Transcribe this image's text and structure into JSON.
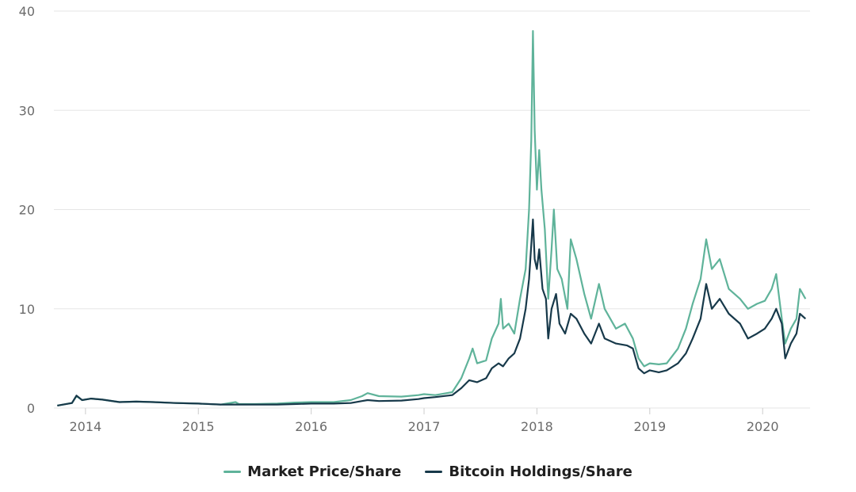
{
  "colors": {
    "market": "#5fb39a",
    "holdings": "#17394a",
    "grid": "#e6e6e6",
    "axis_text": "#6b6b6b"
  },
  "chart_data": {
    "type": "line",
    "title": "",
    "xlabel": "",
    "ylabel": "",
    "ylim": [
      0,
      40
    ],
    "yticks": [
      0,
      10,
      20,
      30,
      40
    ],
    "xlim": [
      2013.72,
      2020.42
    ],
    "xticks": [
      2014,
      2015,
      2016,
      2017,
      2018,
      2019,
      2020
    ],
    "grid": true,
    "legend_position": "bottom-center",
    "series": [
      {
        "name": "Market Price/Share",
        "color": "#5fb39a",
        "points": [
          [
            2013.75,
            0.25
          ],
          [
            2013.88,
            0.5
          ],
          [
            2013.92,
            1.2
          ],
          [
            2013.97,
            0.8
          ],
          [
            2014.05,
            0.95
          ],
          [
            2014.15,
            0.85
          ],
          [
            2014.3,
            0.6
          ],
          [
            2014.45,
            0.65
          ],
          [
            2014.6,
            0.6
          ],
          [
            2014.8,
            0.5
          ],
          [
            2015.0,
            0.45
          ],
          [
            2015.2,
            0.35
          ],
          [
            2015.33,
            0.6
          ],
          [
            2015.36,
            0.4
          ],
          [
            2015.5,
            0.4
          ],
          [
            2015.7,
            0.45
          ],
          [
            2015.85,
            0.55
          ],
          [
            2016.0,
            0.6
          ],
          [
            2016.2,
            0.6
          ],
          [
            2016.35,
            0.8
          ],
          [
            2016.45,
            1.2
          ],
          [
            2016.5,
            1.5
          ],
          [
            2016.6,
            1.2
          ],
          [
            2016.8,
            1.15
          ],
          [
            2016.95,
            1.3
          ],
          [
            2017.0,
            1.4
          ],
          [
            2017.1,
            1.3
          ],
          [
            2017.25,
            1.6
          ],
          [
            2017.33,
            3.0
          ],
          [
            2017.4,
            5.0
          ],
          [
            2017.43,
            6.0
          ],
          [
            2017.47,
            4.5
          ],
          [
            2017.55,
            4.8
          ],
          [
            2017.6,
            7.0
          ],
          [
            2017.66,
            8.5
          ],
          [
            2017.68,
            11.0
          ],
          [
            2017.7,
            8.0
          ],
          [
            2017.75,
            8.5
          ],
          [
            2017.8,
            7.5
          ],
          [
            2017.85,
            11.0
          ],
          [
            2017.9,
            14.0
          ],
          [
            2017.93,
            20.0
          ],
          [
            2017.95,
            27.0
          ],
          [
            2017.965,
            38.0
          ],
          [
            2017.98,
            28.0
          ],
          [
            2018.0,
            22.0
          ],
          [
            2018.02,
            26.0
          ],
          [
            2018.04,
            22.0
          ],
          [
            2018.07,
            18.0
          ],
          [
            2018.1,
            11.0
          ],
          [
            2018.13,
            16.0
          ],
          [
            2018.15,
            20.0
          ],
          [
            2018.18,
            14.0
          ],
          [
            2018.22,
            13.0
          ],
          [
            2018.27,
            10.0
          ],
          [
            2018.3,
            17.0
          ],
          [
            2018.35,
            15.0
          ],
          [
            2018.42,
            11.5
          ],
          [
            2018.48,
            9.0
          ],
          [
            2018.55,
            12.5
          ],
          [
            2018.6,
            10.0
          ],
          [
            2018.7,
            8.0
          ],
          [
            2018.78,
            8.5
          ],
          [
            2018.85,
            7.0
          ],
          [
            2018.9,
            5.0
          ],
          [
            2018.95,
            4.2
          ],
          [
            2019.0,
            4.5
          ],
          [
            2019.08,
            4.4
          ],
          [
            2019.15,
            4.5
          ],
          [
            2019.25,
            6.0
          ],
          [
            2019.32,
            8.0
          ],
          [
            2019.38,
            10.5
          ],
          [
            2019.45,
            13.0
          ],
          [
            2019.5,
            17.0
          ],
          [
            2019.55,
            14.0
          ],
          [
            2019.62,
            15.0
          ],
          [
            2019.7,
            12.0
          ],
          [
            2019.8,
            11.0
          ],
          [
            2019.87,
            10.0
          ],
          [
            2019.95,
            10.5
          ],
          [
            2020.02,
            10.8
          ],
          [
            2020.08,
            12.0
          ],
          [
            2020.12,
            13.5
          ],
          [
            2020.17,
            9.0
          ],
          [
            2020.2,
            6.5
          ],
          [
            2020.25,
            8.0
          ],
          [
            2020.3,
            9.0
          ],
          [
            2020.33,
            12.0
          ],
          [
            2020.38,
            11.0
          ]
        ]
      },
      {
        "name": "Bitcoin Holdings/Share",
        "color": "#17394a",
        "points": [
          [
            2013.75,
            0.25
          ],
          [
            2013.88,
            0.5
          ],
          [
            2013.92,
            1.25
          ],
          [
            2013.97,
            0.8
          ],
          [
            2014.05,
            0.95
          ],
          [
            2014.15,
            0.85
          ],
          [
            2014.3,
            0.6
          ],
          [
            2014.45,
            0.65
          ],
          [
            2014.6,
            0.6
          ],
          [
            2014.8,
            0.5
          ],
          [
            2015.0,
            0.45
          ],
          [
            2015.2,
            0.35
          ],
          [
            2015.5,
            0.35
          ],
          [
            2015.7,
            0.35
          ],
          [
            2015.85,
            0.4
          ],
          [
            2016.0,
            0.45
          ],
          [
            2016.2,
            0.45
          ],
          [
            2016.35,
            0.5
          ],
          [
            2016.45,
            0.7
          ],
          [
            2016.5,
            0.8
          ],
          [
            2016.6,
            0.7
          ],
          [
            2016.8,
            0.75
          ],
          [
            2016.95,
            0.9
          ],
          [
            2017.0,
            1.0
          ],
          [
            2017.1,
            1.1
          ],
          [
            2017.25,
            1.3
          ],
          [
            2017.33,
            2.0
          ],
          [
            2017.4,
            2.8
          ],
          [
            2017.47,
            2.6
          ],
          [
            2017.55,
            3.0
          ],
          [
            2017.6,
            4.0
          ],
          [
            2017.66,
            4.5
          ],
          [
            2017.7,
            4.2
          ],
          [
            2017.75,
            5.0
          ],
          [
            2017.8,
            5.5
          ],
          [
            2017.85,
            7.0
          ],
          [
            2017.9,
            10.0
          ],
          [
            2017.93,
            13.0
          ],
          [
            2017.965,
            19.0
          ],
          [
            2017.98,
            15.0
          ],
          [
            2018.0,
            14.0
          ],
          [
            2018.02,
            16.0
          ],
          [
            2018.05,
            12.0
          ],
          [
            2018.08,
            11.0
          ],
          [
            2018.1,
            7.0
          ],
          [
            2018.13,
            10.0
          ],
          [
            2018.17,
            11.5
          ],
          [
            2018.2,
            8.5
          ],
          [
            2018.25,
            7.5
          ],
          [
            2018.3,
            9.5
          ],
          [
            2018.35,
            9.0
          ],
          [
            2018.42,
            7.5
          ],
          [
            2018.48,
            6.5
          ],
          [
            2018.55,
            8.5
          ],
          [
            2018.6,
            7.0
          ],
          [
            2018.7,
            6.5
          ],
          [
            2018.8,
            6.3
          ],
          [
            2018.85,
            6.0
          ],
          [
            2018.9,
            4.0
          ],
          [
            2018.95,
            3.5
          ],
          [
            2019.0,
            3.8
          ],
          [
            2019.08,
            3.6
          ],
          [
            2019.15,
            3.8
          ],
          [
            2019.25,
            4.5
          ],
          [
            2019.32,
            5.5
          ],
          [
            2019.38,
            7.0
          ],
          [
            2019.45,
            9.0
          ],
          [
            2019.5,
            12.5
          ],
          [
            2019.55,
            10.0
          ],
          [
            2019.62,
            11.0
          ],
          [
            2019.7,
            9.5
          ],
          [
            2019.8,
            8.5
          ],
          [
            2019.87,
            7.0
          ],
          [
            2019.95,
            7.5
          ],
          [
            2020.02,
            8.0
          ],
          [
            2020.08,
            9.0
          ],
          [
            2020.12,
            10.0
          ],
          [
            2020.17,
            8.5
          ],
          [
            2020.2,
            5.0
          ],
          [
            2020.25,
            6.5
          ],
          [
            2020.3,
            7.5
          ],
          [
            2020.33,
            9.5
          ],
          [
            2020.38,
            9.0
          ]
        ]
      }
    ]
  }
}
